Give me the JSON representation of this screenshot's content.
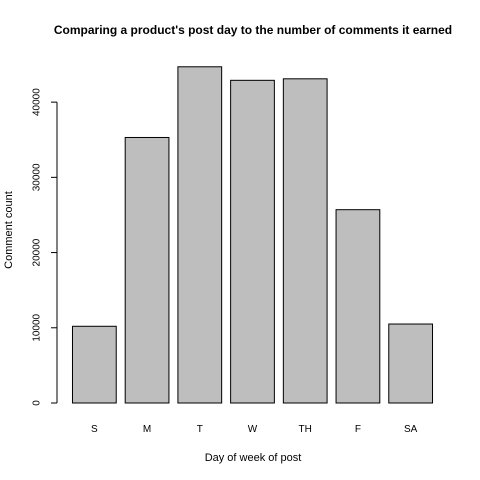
{
  "chart_data": {
    "type": "bar",
    "title": "Comparing a product's post day to the number of comments it earned",
    "xlabel": "Day of week of post",
    "ylabel": "Comment count",
    "categories": [
      "S",
      "M",
      "T",
      "W",
      "TH",
      "F",
      "SA"
    ],
    "values": [
      10200,
      35300,
      44700,
      42900,
      43100,
      25700,
      10500
    ],
    "yticks": [
      0,
      10000,
      20000,
      30000,
      40000
    ],
    "ylim": [
      0,
      46000
    ],
    "bar_color": "#bebebe",
    "grid": false,
    "legend": "none"
  }
}
